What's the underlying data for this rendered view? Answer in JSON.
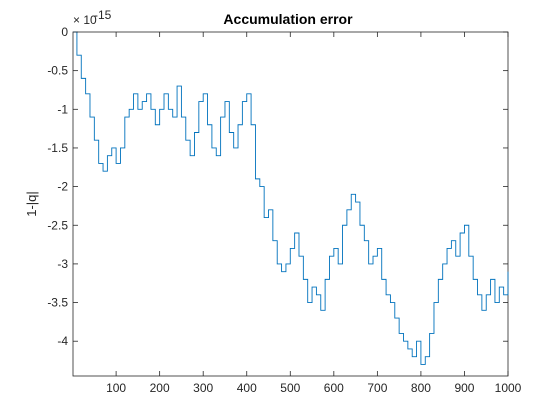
{
  "chart_data": {
    "type": "line",
    "title": "Accumulation error",
    "xlabel": "",
    "ylabel": "1-|q|",
    "y_exponent_label": "× 10",
    "y_exponent_power": "-15",
    "xlim": [
      1,
      1000
    ],
    "ylim": [
      -4.45e-15,
      0
    ],
    "xticks": [
      100,
      200,
      300,
      400,
      500,
      600,
      700,
      800,
      900,
      1000
    ],
    "yticks": [
      0,
      -0.5,
      -1,
      -1.5,
      -2,
      -2.5,
      -3,
      -3.5,
      -4
    ],
    "ytick_labels": [
      "0",
      "-0.5",
      "-1",
      "-1.5",
      "-2",
      "-2.5",
      "-3",
      "-3.5",
      "-4"
    ],
    "grid": false,
    "series": [
      {
        "color": "#0072BD",
        "x": [
          1,
          10,
          20,
          30,
          40,
          50,
          60,
          70,
          80,
          90,
          100,
          110,
          120,
          130,
          140,
          150,
          160,
          170,
          180,
          190,
          200,
          210,
          220,
          230,
          240,
          250,
          260,
          270,
          280,
          290,
          300,
          310,
          320,
          330,
          340,
          350,
          360,
          370,
          380,
          390,
          400,
          410,
          420,
          430,
          440,
          450,
          460,
          470,
          480,
          490,
          500,
          510,
          520,
          530,
          540,
          550,
          560,
          570,
          580,
          590,
          600,
          610,
          620,
          630,
          640,
          650,
          660,
          670,
          680,
          690,
          700,
          710,
          720,
          730,
          740,
          750,
          760,
          770,
          780,
          790,
          800,
          810,
          820,
          830,
          840,
          850,
          860,
          870,
          880,
          890,
          900,
          910,
          920,
          930,
          940,
          950,
          960,
          970,
          980,
          990,
          1000
        ],
        "y": [
          0,
          -3e-16,
          -6e-16,
          -8e-16,
          -1.1e-15,
          -1.4e-15,
          -1.7e-15,
          -1.8e-15,
          -1.6e-15,
          -1.5e-15,
          -1.7e-15,
          -1.5e-15,
          -1.1e-15,
          -1e-15,
          -8e-16,
          -1e-15,
          -9e-16,
          -8e-16,
          -1e-15,
          -1.2e-15,
          -1e-15,
          -8e-16,
          -1e-15,
          -1.1e-15,
          -7e-16,
          -1.1e-15,
          -1.4e-15,
          -1.6e-15,
          -1.3e-15,
          -9e-16,
          -8e-16,
          -1.2e-15,
          -1.5e-15,
          -1.6e-15,
          -1.1e-15,
          -9e-16,
          -1.3e-15,
          -1.5e-15,
          -1.2e-15,
          -9e-16,
          -8e-16,
          -1.2e-15,
          -1.9e-15,
          -2e-15,
          -2.4e-15,
          -2.3e-15,
          -2.7e-15,
          -3e-15,
          -3.1e-15,
          -3e-15,
          -2.8e-15,
          -2.6e-15,
          -2.9e-15,
          -3.2e-15,
          -3.5e-15,
          -3.3e-15,
          -3.4e-15,
          -3.6e-15,
          -3.2e-15,
          -2.9e-15,
          -2.8e-15,
          -3e-15,
          -2.5e-15,
          -2.3e-15,
          -2.1e-15,
          -2.2e-15,
          -2.5e-15,
          -2.7e-15,
          -3e-15,
          -2.9e-15,
          -2.8e-15,
          -3.2e-15,
          -3.4e-15,
          -3.5e-15,
          -3.7e-15,
          -3.9e-15,
          -4e-15,
          -4.1e-15,
          -4.2e-15,
          -4e-15,
          -4.3e-15,
          -4.2e-15,
          -3.9e-15,
          -3.5e-15,
          -3.2e-15,
          -3e-15,
          -2.8e-15,
          -2.7e-15,
          -2.9e-15,
          -2.6e-15,
          -2.5e-15,
          -2.9e-15,
          -3.2e-15,
          -3.4e-15,
          -3.6e-15,
          -3.4e-15,
          -3.2e-15,
          -3.5e-15,
          -3.3e-15,
          -3.4e-15,
          -3.1e-15
        ]
      }
    ]
  }
}
